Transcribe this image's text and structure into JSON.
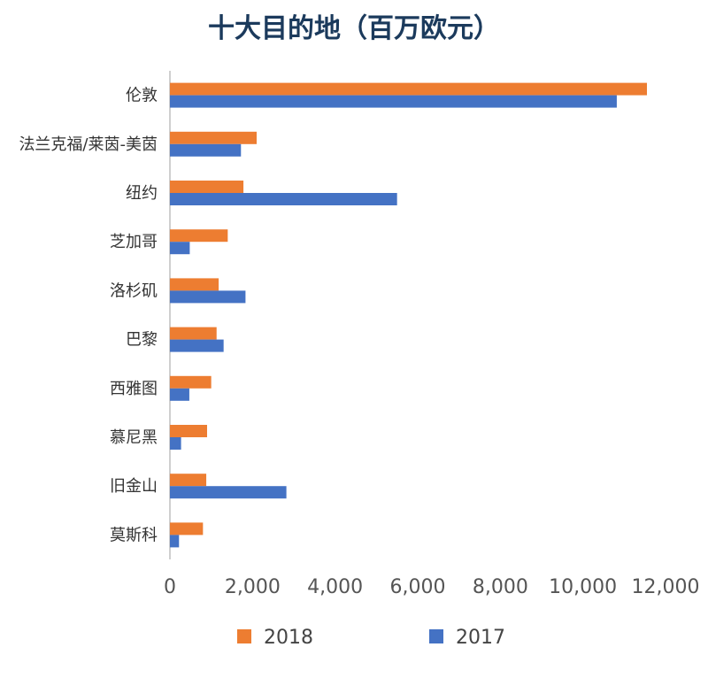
{
  "chart_data": {
    "type": "bar",
    "orientation": "horizontal",
    "title": "十大目的地（百万欧元）",
    "categories": [
      "伦敦",
      "法兰克福/莱茵-美茵",
      "纽约",
      "芝加哥",
      "洛杉矶",
      "巴黎",
      "西雅图",
      "慕尼黑",
      "旧金山",
      "莫斯科"
    ],
    "series": [
      {
        "name": "2018",
        "color": "#ed7d31",
        "values": [
          11550,
          2100,
          1780,
          1400,
          1180,
          1130,
          1000,
          900,
          880,
          800
        ]
      },
      {
        "name": "2017",
        "color": "#4472c4",
        "values": [
          10820,
          1720,
          5500,
          480,
          1830,
          1300,
          470,
          270,
          2820,
          220
        ]
      }
    ],
    "xlim": [
      0,
      12000
    ],
    "x_ticks": [
      0,
      2000,
      4000,
      6000,
      8000,
      10000,
      12000
    ],
    "x_tick_labels": [
      "0",
      "2,000",
      "4,000",
      "6,000",
      "8,000",
      "10,000",
      "12,000"
    ],
    "grid": false,
    "legend": "bottom"
  }
}
